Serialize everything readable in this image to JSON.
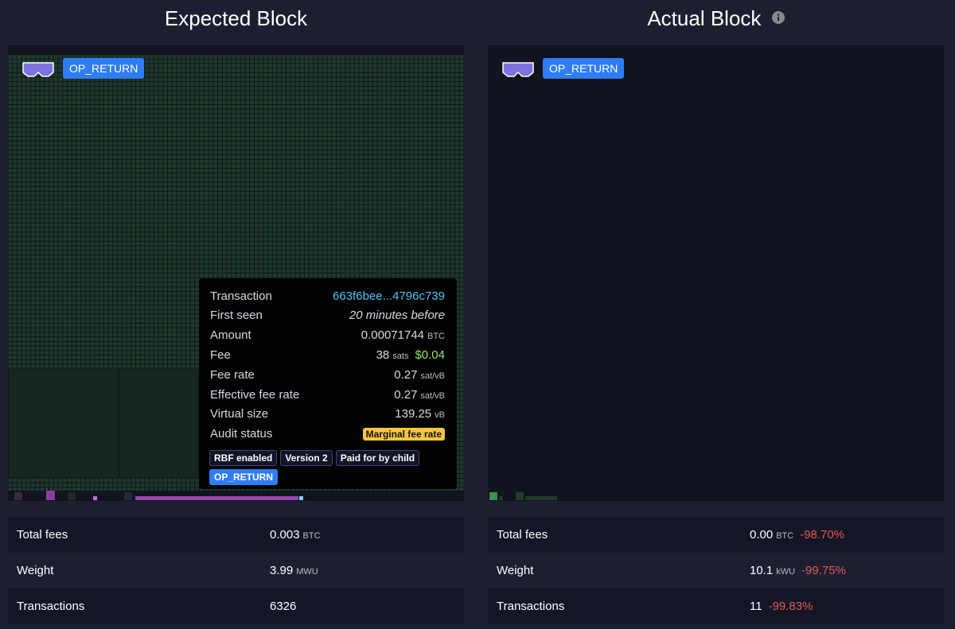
{
  "expected": {
    "title": "Expected Block",
    "badge": "OP_RETURN",
    "stats": [
      {
        "label": "Total fees",
        "value": "0.003",
        "unit": "BTC"
      },
      {
        "label": "Weight",
        "value": "3.99",
        "unit": "MWU"
      },
      {
        "label": "Transactions",
        "value": "6326"
      }
    ]
  },
  "actual": {
    "title": "Actual Block",
    "badge": "OP_RETURN",
    "stats": [
      {
        "label": "Total fees",
        "value": "0.00",
        "unit": "BTC",
        "change": "-98.70%"
      },
      {
        "label": "Weight",
        "value": "10.1",
        "unit": "kWU",
        "change": "-99.75%"
      },
      {
        "label": "Transactions",
        "value": "11",
        "change": "-99.83%"
      }
    ]
  },
  "tooltip": {
    "rows": [
      {
        "label": "Transaction",
        "value": "663f6bee...4796c739"
      },
      {
        "label": "First seen",
        "value": "20 minutes before"
      },
      {
        "label": "Amount",
        "value": "0.00071744",
        "unit": "BTC"
      },
      {
        "label": "Fee",
        "value": "38",
        "unit": "sats",
        "fiat": "$0.04"
      },
      {
        "label": "Fee rate",
        "value": "0.27",
        "unit": "sat/vB"
      },
      {
        "label": "Effective fee rate",
        "value": "0.27",
        "unit": "sat/vB"
      },
      {
        "label": "Virtual size",
        "value": "139.25",
        "unit": "vB"
      },
      {
        "label": "Audit status",
        "value": "Marginal fee rate"
      }
    ],
    "tags": [
      "RBF enabled",
      "Version 2",
      "Paid for by child",
      "OP_RETURN"
    ]
  }
}
